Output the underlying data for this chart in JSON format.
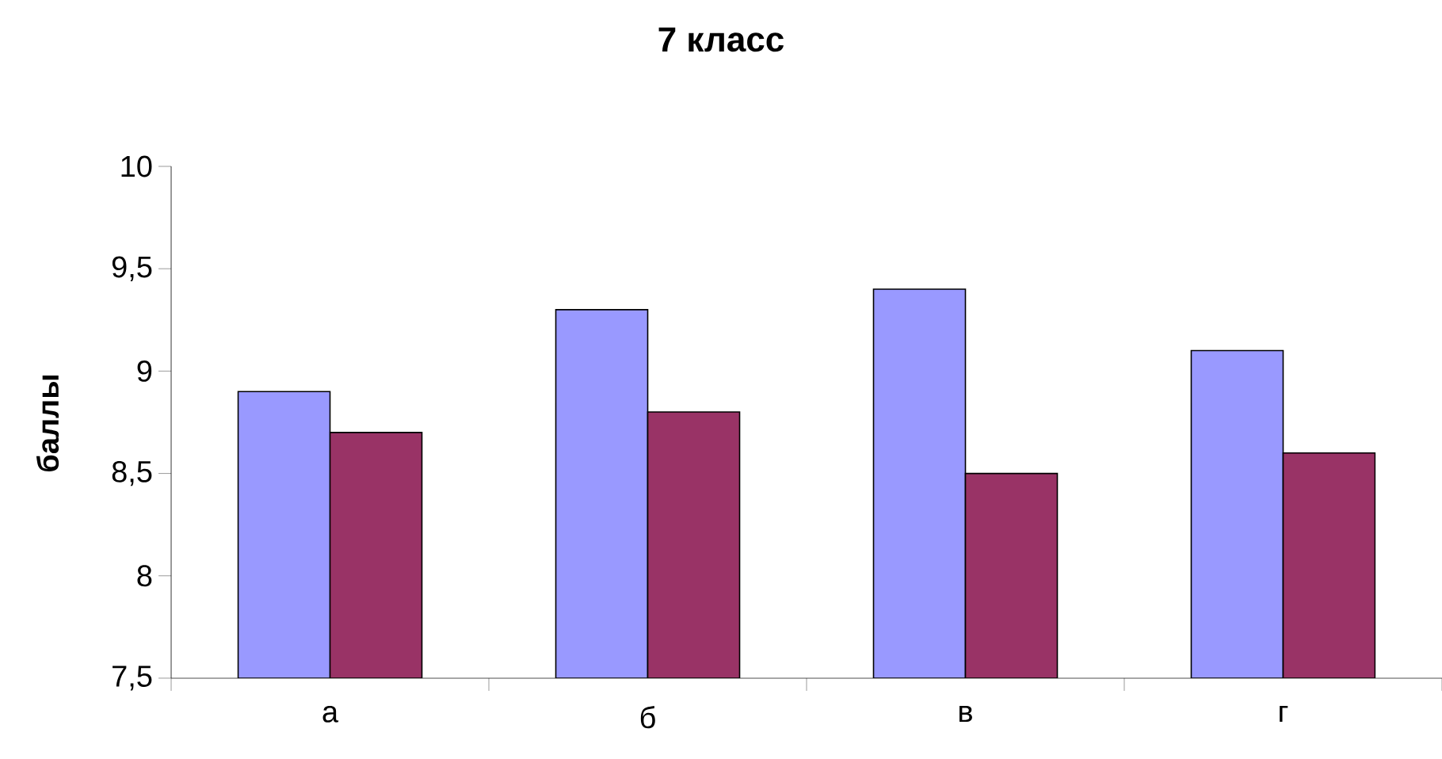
{
  "chart_data": {
    "type": "bar",
    "title": "7 класс",
    "ylabel": "баллы",
    "categories": [
      "а",
      "б",
      "в",
      "г"
    ],
    "series": [
      {
        "color": "#9999ff",
        "values": [
          8.9,
          9.3,
          9.4,
          9.1
        ]
      },
      {
        "color": "#993366",
        "values": [
          8.7,
          8.8,
          8.5,
          8.6
        ]
      }
    ],
    "ylim": [
      7.5,
      10
    ],
    "yticks": [
      {
        "value": 7.5,
        "label": "7,5"
      },
      8,
      {
        "value": 8.5,
        "label": "8,5"
      },
      9,
      {
        "value": 9.5,
        "label": "9,5"
      },
      10
    ]
  }
}
